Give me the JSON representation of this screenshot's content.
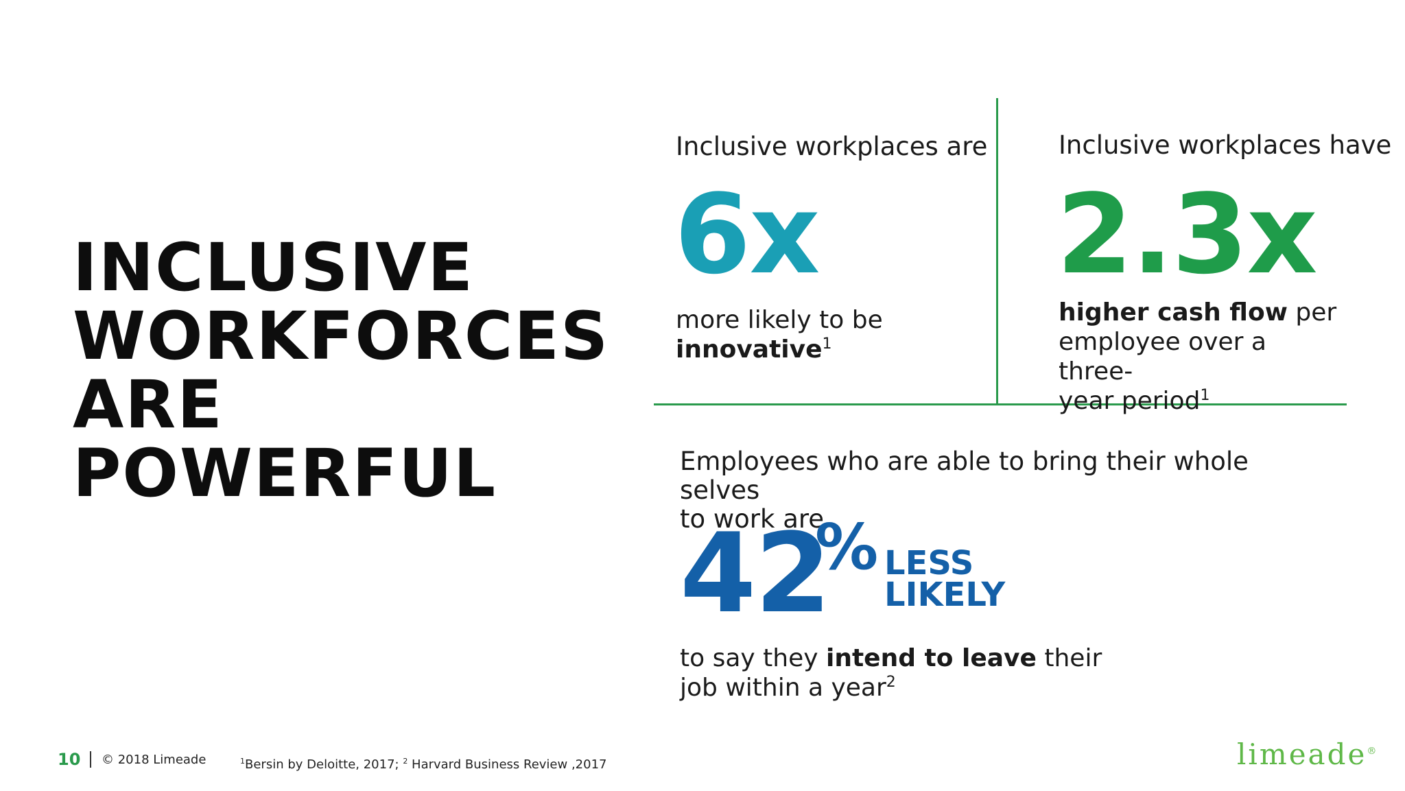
{
  "headline": {
    "lines": [
      "INCLUSIVE",
      "WORKFORCES",
      "ARE",
      "POWERFUL"
    ]
  },
  "stats": [
    {
      "intro": "Inclusive workplaces are",
      "value": "6x",
      "desc_plain": "more likely to be",
      "desc_bold": "innovative",
      "desc_sup": "1",
      "color": "#1a9fb5"
    },
    {
      "intro": "Inclusive workplaces have",
      "value": "2.3x",
      "desc_bold": "higher cash flow",
      "desc_plain_1": " per",
      "desc_plain_2": "employee over a three-",
      "desc_plain_3": "year period",
      "desc_sup": "1",
      "color": "#1f9c4a"
    },
    {
      "intro_1": "Employees who are able to bring their whole selves",
      "intro_2": "to work are",
      "value": "42",
      "value_suffix": "%",
      "tag_1": "LESS",
      "tag_2": "LIKELY",
      "desc_plain_1": "to say they ",
      "desc_bold": "intend to leave",
      "desc_plain_2": " their",
      "desc_plain_3": "job within a year",
      "desc_sup": "2",
      "color": "#1460a8"
    }
  ],
  "footer": {
    "page_number": "10",
    "copyright": "© 2018 Limeade",
    "sources_sup_1": "1",
    "sources_1": "Bersin by Deloitte, 2017; ",
    "sources_sup_2": "2",
    "sources_2": " Harvard Business Review ,2017"
  },
  "logo": {
    "text": "limeade",
    "mark": "®"
  },
  "colors": {
    "accent_green": "#2a9a4c",
    "logo_green": "#5fb848"
  }
}
